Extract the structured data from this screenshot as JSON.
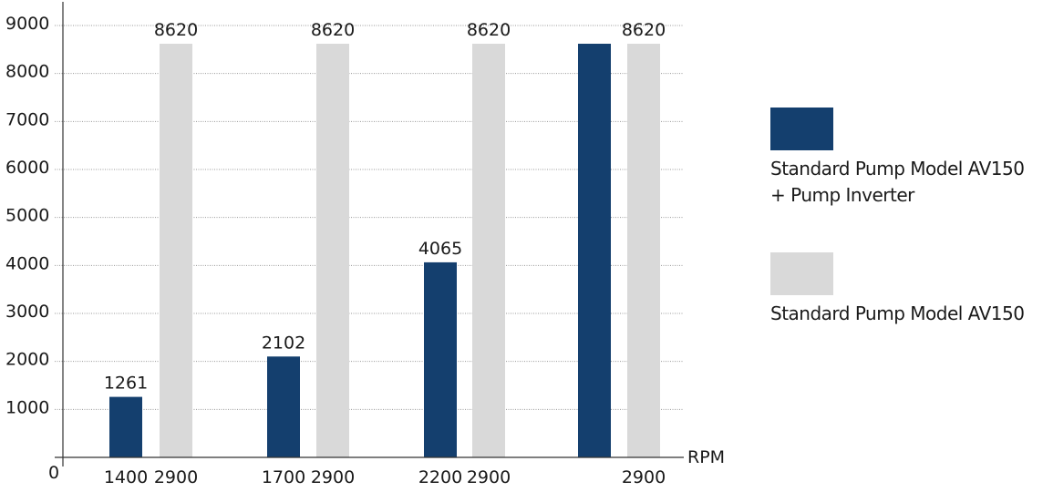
{
  "chart_data": {
    "type": "bar",
    "title": "",
    "xlabel": "RPM",
    "ylabel": "",
    "ylim": [
      0,
      9000
    ],
    "yticks": [
      0,
      1000,
      2000,
      3000,
      4000,
      5000,
      6000,
      7000,
      8000,
      9000
    ],
    "grid": true,
    "legend_position": "right",
    "groups": [
      {
        "bars": [
          {
            "series": 0,
            "rpm": "1400",
            "value": 1261,
            "value_label": "1261"
          },
          {
            "series": 1,
            "rpm": "2900",
            "value": 8620,
            "value_label": "8620"
          }
        ]
      },
      {
        "bars": [
          {
            "series": 0,
            "rpm": "1700",
            "value": 2102,
            "value_label": "2102"
          },
          {
            "series": 1,
            "rpm": "2900",
            "value": 8620,
            "value_label": "8620"
          }
        ]
      },
      {
        "bars": [
          {
            "series": 0,
            "rpm": "2200",
            "value": 4065,
            "value_label": "4065"
          },
          {
            "series": 1,
            "rpm": "2900",
            "value": 8620,
            "value_label": "8620"
          }
        ]
      },
      {
        "bars": [
          {
            "series": 0,
            "rpm": "",
            "value": 8620,
            "value_label": ""
          },
          {
            "series": 1,
            "rpm": "2900",
            "value": 8620,
            "value_label": "8620"
          }
        ]
      }
    ],
    "series": [
      {
        "name": "Standard Pump Model AV150 + Pump Inverter",
        "color": "#143f6e"
      },
      {
        "name": "Standard Pump Model AV150",
        "color": "#d9d9d9"
      }
    ]
  },
  "legend": {
    "item1_line1": "Standard Pump Model AV150",
    "item1_line2": "+ Pump Inverter",
    "item2_line1": "Standard Pump Model AV150"
  }
}
